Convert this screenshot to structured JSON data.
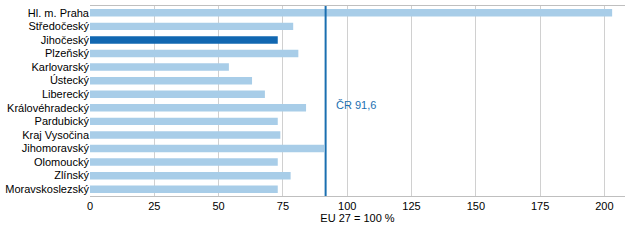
{
  "chart_data": {
    "type": "bar",
    "orientation": "horizontal",
    "categories": [
      "Hl. m. Praha",
      "Středočeský",
      "Jihočeský",
      "Plzeňský",
      "Karlovarský",
      "Ústecký",
      "Liberecký",
      "Královéhradecký",
      "Pardubický",
      "Kraj Vysočina",
      "Jihomoravský",
      "Olomoucký",
      "Zlínský",
      "Moravskoslezský"
    ],
    "values": [
      203,
      79,
      73,
      81,
      54,
      63,
      68,
      84,
      73,
      74,
      91,
      73,
      78,
      73
    ],
    "colors": [
      "#a8cde8",
      "#a8cde8",
      "#1167b1",
      "#a8cde8",
      "#a8cde8",
      "#a8cde8",
      "#a8cde8",
      "#a8cde8",
      "#a8cde8",
      "#a8cde8",
      "#a8cde8",
      "#a8cde8",
      "#a8cde8",
      "#a8cde8"
    ],
    "xlabel": "EU 27 = 100 %",
    "xlim": [
      0,
      208
    ],
    "xticks": [
      0,
      25,
      50,
      75,
      100,
      125,
      150,
      175,
      200
    ],
    "grid": true,
    "reference_line": {
      "value": 91.6,
      "label": "ČR 91,6"
    }
  }
}
